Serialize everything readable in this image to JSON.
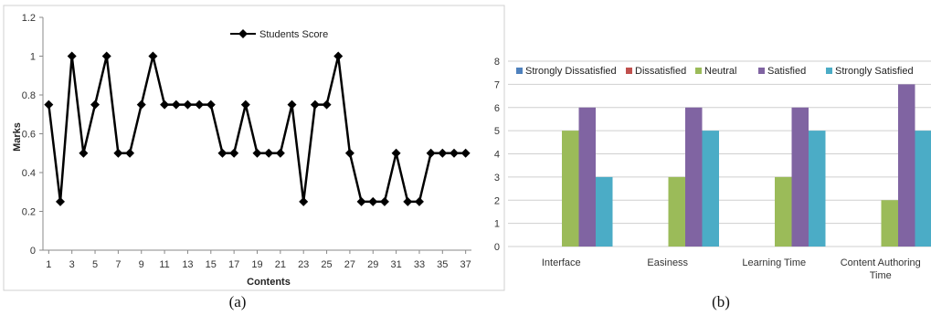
{
  "chart_data": [
    {
      "type": "line",
      "title": "",
      "xlabel": "Contents",
      "ylabel": "Marks",
      "ylim": [
        0,
        1.2
      ],
      "yticks": [
        "0",
        "0.2",
        "0.4",
        "0.6",
        "0.8",
        "1",
        "1.2"
      ],
      "xticks": [
        "1",
        "3",
        "5",
        "7",
        "9",
        "11",
        "13",
        "15",
        "17",
        "19",
        "21",
        "23",
        "25",
        "27",
        "29",
        "31",
        "33",
        "35",
        "37"
      ],
      "x": [
        1,
        2,
        3,
        4,
        5,
        6,
        7,
        8,
        9,
        10,
        11,
        12,
        13,
        14,
        15,
        16,
        17,
        18,
        19,
        20,
        21,
        22,
        23,
        24,
        25,
        26,
        27,
        28,
        29,
        30,
        31,
        32,
        33,
        34,
        35,
        36,
        37
      ],
      "series": [
        {
          "name": "Students Score",
          "values": [
            0.75,
            0.25,
            1,
            0.5,
            0.75,
            1,
            0.5,
            0.5,
            0.75,
            1,
            0.75,
            0.75,
            0.75,
            0.75,
            0.75,
            0.5,
            0.5,
            0.75,
            0.5,
            0.5,
            0.5,
            0.75,
            0.25,
            0.75,
            0.75,
            1,
            0.5,
            0.25,
            0.25,
            0.25,
            0.5,
            0.25,
            0.25,
            0.5,
            0.5,
            0.5,
            0.5
          ]
        }
      ],
      "legend_position": "top-center",
      "grid": false,
      "caption": "(a)",
      "colors": {
        "line": "#000000"
      }
    },
    {
      "type": "bar",
      "title": "",
      "categories": [
        "Interface",
        "Easiness",
        "Learning Time",
        "Content Authoring Time"
      ],
      "ylim": [
        0,
        8
      ],
      "yticks": [
        "0",
        "1",
        "2",
        "3",
        "4",
        "5",
        "6",
        "7",
        "8"
      ],
      "series": [
        {
          "name": "Strongly Dissatisfied",
          "color": "#4f81bd",
          "values": [
            0,
            0,
            0,
            0
          ]
        },
        {
          "name": "Dissatisfied",
          "color": "#c0504d",
          "values": [
            0,
            0,
            0,
            0
          ]
        },
        {
          "name": "Neutral",
          "color": "#9bbb59",
          "values": [
            5,
            3,
            3,
            2
          ]
        },
        {
          "name": "Satisfied",
          "color": "#8064a2",
          "values": [
            6,
            6,
            6,
            7
          ]
        },
        {
          "name": "Strongly Satisfied",
          "color": "#4bacc6",
          "values": [
            3,
            5,
            5,
            5
          ]
        }
      ],
      "legend_position": "top",
      "grid": true,
      "caption": "(b)"
    }
  ]
}
